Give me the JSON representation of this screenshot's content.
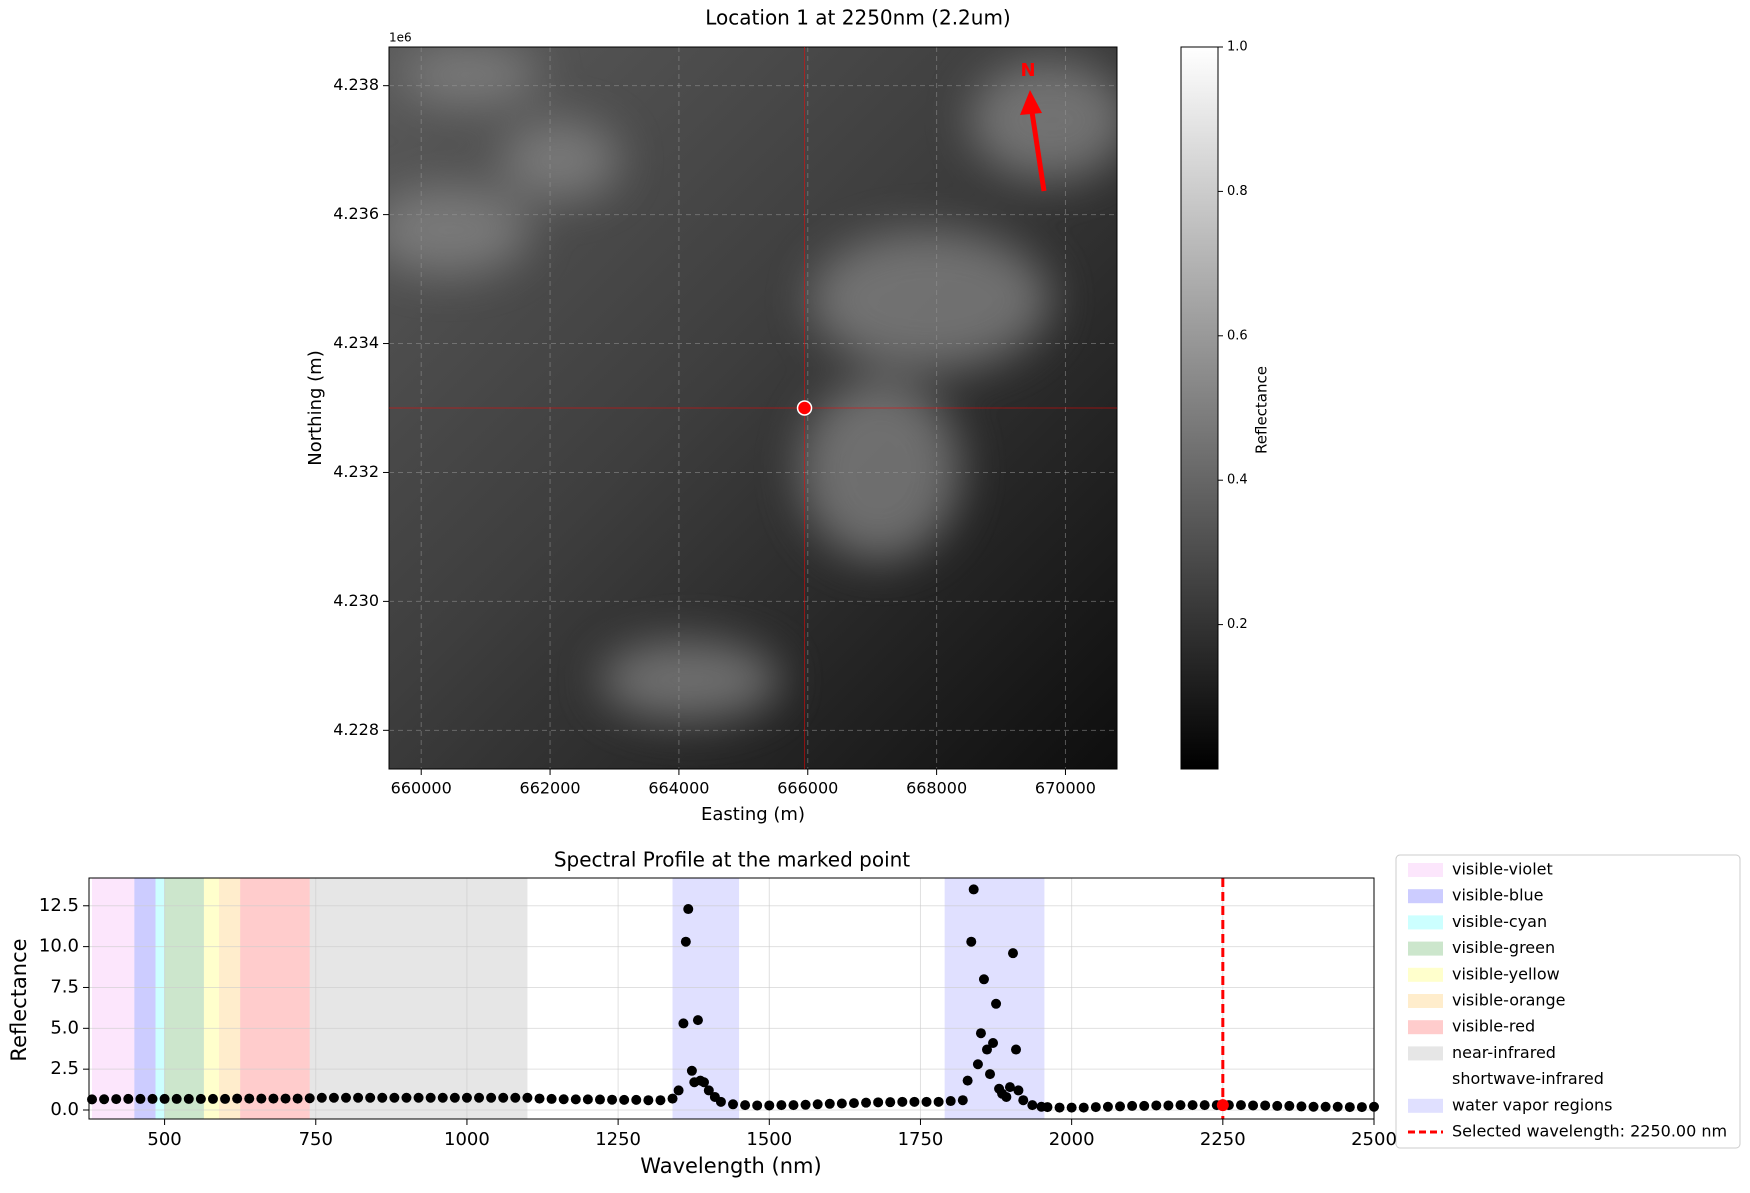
{
  "chart_data": [
    {
      "type": "image",
      "title": "Location 1 at 2250nm (2.2um)",
      "x_label": "Easting (m)",
      "y_label": "Northing (m)",
      "y_offset_label": "1e6",
      "xlim": [
        659500,
        670800
      ],
      "ylim": [
        4227400,
        4238600
      ],
      "xticks": [
        660000,
        662000,
        664000,
        666000,
        668000,
        670000
      ],
      "yticks": [
        {
          "value": 4228000,
          "label": "4.228"
        },
        {
          "value": 4230000,
          "label": "4.230"
        },
        {
          "value": 4232000,
          "label": "4.232"
        },
        {
          "value": 4234000,
          "label": "4.234"
        },
        {
          "value": 4236000,
          "label": "4.236"
        },
        {
          "value": 4238000,
          "label": "4.238"
        }
      ],
      "grid": true,
      "point": {
        "x": 665950,
        "y": 4233000
      },
      "point_color": "#ff0000",
      "north_label": "N",
      "colorbar": {
        "label": "Reflectance",
        "lim": [
          0,
          1
        ],
        "ticks": [
          0.2,
          0.4,
          0.6,
          0.8,
          {
            "value": 1,
            "label": "1.0"
          }
        ]
      }
    },
    {
      "type": "scatter",
      "title": "Spectral Profile at the marked point",
      "x_label": "Wavelength (nm)",
      "y_label": "Reflectance",
      "xlim": [
        375,
        2500
      ],
      "ylim": [
        -0.55,
        14.2
      ],
      "xticks": [
        500,
        750,
        1000,
        1250,
        1500,
        1750,
        2000,
        2250,
        2500
      ],
      "yticks": [
        {
          "value": 0,
          "label": "0.0"
        },
        2.5,
        {
          "value": 5,
          "label": "5.0"
        },
        7.5,
        {
          "value": 10,
          "label": "10.0"
        },
        12.5
      ],
      "grid": true,
      "color": "#000000",
      "band_alpha": 0.2,
      "bands": [
        {
          "name": "visible-violet",
          "color": "#ee82ee",
          "ranges": [
            [
              380,
              450
            ]
          ]
        },
        {
          "name": "visible-blue",
          "color": "#0000ff",
          "ranges": [
            [
              450,
              485
            ]
          ]
        },
        {
          "name": "visible-cyan",
          "color": "#00ffff",
          "ranges": [
            [
              485,
              500
            ]
          ]
        },
        {
          "name": "visible-green",
          "color": "#008000",
          "ranges": [
            [
              500,
              565
            ]
          ]
        },
        {
          "name": "visible-yellow",
          "color": "#ffff00",
          "ranges": [
            [
              565,
              590
            ]
          ]
        },
        {
          "name": "visible-orange",
          "color": "#ffa500",
          "ranges": [
            [
              590,
              625
            ]
          ]
        },
        {
          "name": "visible-red",
          "color": "#ff0000",
          "ranges": [
            [
              625,
              740
            ]
          ]
        },
        {
          "name": "near-infrared",
          "color": "#808080",
          "ranges": [
            [
              740,
              1100
            ]
          ]
        },
        {
          "name": "shortwave-infrared",
          "color": "#ffffff",
          "ranges": [
            [
              1100,
              2500
            ]
          ]
        },
        {
          "name": "water vapor regions",
          "color": "#6666ff",
          "ranges": [
            [
              1340,
              1450
            ],
            [
              1790,
              1955
            ]
          ]
        }
      ],
      "selected": {
        "value": 2250,
        "reflectance": 0.3,
        "label": "Selected wavelength: 2250.00 nm",
        "color": "#ff0000"
      },
      "x": [
        380,
        400,
        420,
        440,
        460,
        480,
        500,
        520,
        540,
        560,
        580,
        600,
        620,
        640,
        660,
        680,
        700,
        720,
        740,
        760,
        780,
        800,
        820,
        840,
        860,
        880,
        900,
        920,
        940,
        960,
        980,
        1000,
        1020,
        1040,
        1060,
        1080,
        1100,
        1120,
        1140,
        1160,
        1180,
        1200,
        1220,
        1240,
        1260,
        1280,
        1300,
        1320,
        1340,
        1350,
        1358,
        1362,
        1366,
        1372,
        1376,
        1382,
        1386,
        1392,
        1400,
        1410,
        1420,
        1440,
        1460,
        1480,
        1500,
        1520,
        1540,
        1560,
        1580,
        1600,
        1620,
        1640,
        1660,
        1680,
        1700,
        1720,
        1740,
        1760,
        1780,
        1800,
        1820,
        1828,
        1834,
        1838,
        1845,
        1850,
        1855,
        1860,
        1865,
        1870,
        1875,
        1880,
        1885,
        1892,
        1898,
        1903,
        1908,
        1912,
        1920,
        1935,
        1950,
        1960,
        1980,
        2000,
        2020,
        2040,
        2060,
        2080,
        2100,
        2120,
        2140,
        2160,
        2180,
        2200,
        2220,
        2240,
        2260,
        2280,
        2300,
        2320,
        2340,
        2360,
        2380,
        2400,
        2420,
        2440,
        2460,
        2480,
        2500
      ],
      "values": [
        0.65,
        0.66,
        0.67,
        0.68,
        0.68,
        0.68,
        0.68,
        0.68,
        0.68,
        0.68,
        0.68,
        0.68,
        0.7,
        0.7,
        0.7,
        0.7,
        0.7,
        0.7,
        0.72,
        0.75,
        0.75,
        0.75,
        0.75,
        0.75,
        0.75,
        0.75,
        0.75,
        0.75,
        0.75,
        0.75,
        0.75,
        0.75,
        0.75,
        0.75,
        0.75,
        0.75,
        0.75,
        0.7,
        0.68,
        0.66,
        0.65,
        0.65,
        0.64,
        0.63,
        0.62,
        0.62,
        0.6,
        0.6,
        0.7,
        1.2,
        5.3,
        10.3,
        12.3,
        2.4,
        1.7,
        5.5,
        1.8,
        1.7,
        1.2,
        0.8,
        0.5,
        0.35,
        0.3,
        0.28,
        0.28,
        0.3,
        0.3,
        0.32,
        0.35,
        0.38,
        0.4,
        0.42,
        0.45,
        0.47,
        0.48,
        0.5,
        0.5,
        0.5,
        0.5,
        0.55,
        0.6,
        1.8,
        10.3,
        13.5,
        2.8,
        4.7,
        8.0,
        3.7,
        2.2,
        4.1,
        6.5,
        1.3,
        1.0,
        0.8,
        1.4,
        9.6,
        3.7,
        1.2,
        0.6,
        0.3,
        0.2,
        0.18,
        0.15,
        0.15,
        0.15,
        0.18,
        0.2,
        0.22,
        0.25,
        0.25,
        0.28,
        0.28,
        0.3,
        0.3,
        0.3,
        0.3,
        0.3,
        0.3,
        0.28,
        0.28,
        0.25,
        0.25,
        0.22,
        0.2,
        0.2,
        0.2,
        0.18,
        0.18,
        0.2
      ]
    }
  ]
}
